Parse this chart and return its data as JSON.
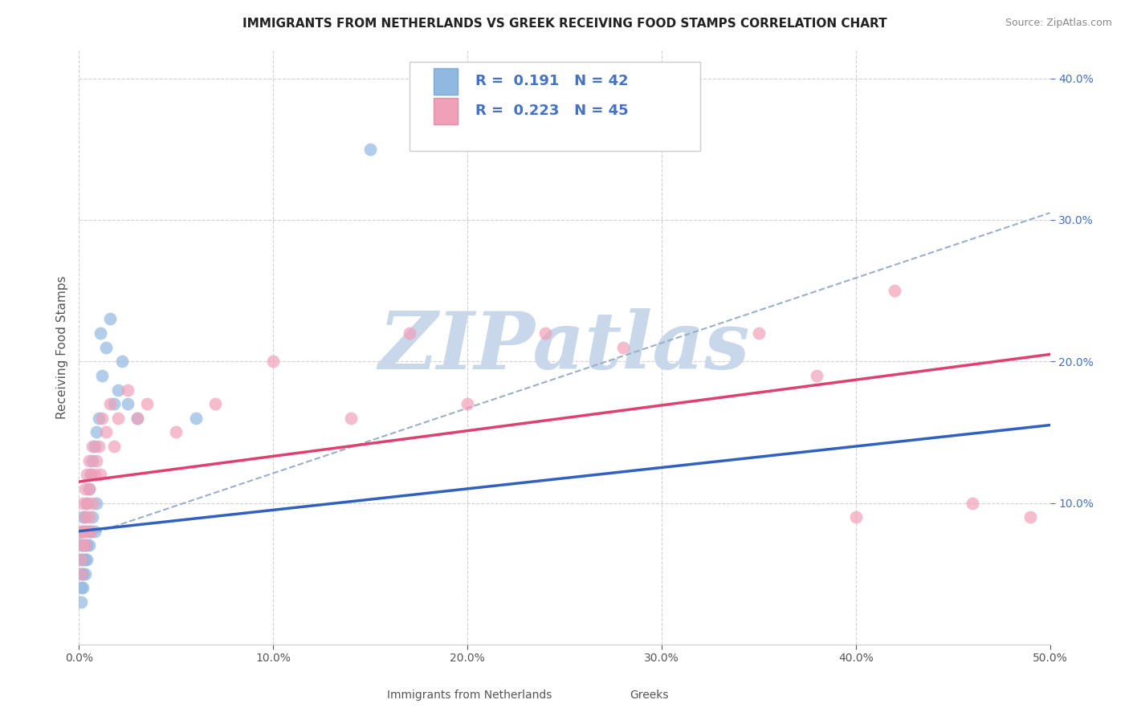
{
  "title": "IMMIGRANTS FROM NETHERLANDS VS GREEK RECEIVING FOOD STAMPS CORRELATION CHART",
  "source": "Source: ZipAtlas.com",
  "ylabel": "Receiving Food Stamps",
  "xlim": [
    0.0,
    0.5
  ],
  "ylim": [
    0.0,
    0.42
  ],
  "xticks": [
    0.0,
    0.1,
    0.2,
    0.3,
    0.4,
    0.5
  ],
  "yticks": [
    0.1,
    0.2,
    0.3,
    0.4
  ],
  "xtick_labels": [
    "0.0%",
    "10.0%",
    "20.0%",
    "30.0%",
    "40.0%",
    "50.0%"
  ],
  "ytick_labels_right": [
    "10.0%",
    "20.0%",
    "30.0%",
    "40.0%"
  ],
  "netherlands_color": "#90b8e0",
  "greek_color": "#f0a0b8",
  "netherlands_line_color": "#3060c0",
  "greek_line_color": "#e04070",
  "trend_dashed_color": "#9ab0c8",
  "watermark": "ZIPatlas",
  "watermark_color": "#c8d8ea",
  "legend_R_netherlands": "0.191",
  "legend_N_netherlands": "42",
  "legend_R_greek": "0.223",
  "legend_N_greek": "45",
  "nl_x": [
    0.001,
    0.001,
    0.001,
    0.001,
    0.001,
    0.002,
    0.002,
    0.002,
    0.002,
    0.002,
    0.002,
    0.003,
    0.003,
    0.003,
    0.003,
    0.003,
    0.004,
    0.004,
    0.004,
    0.005,
    0.005,
    0.005,
    0.006,
    0.006,
    0.007,
    0.007,
    0.008,
    0.008,
    0.009,
    0.009,
    0.01,
    0.011,
    0.012,
    0.014,
    0.016,
    0.018,
    0.02,
    0.022,
    0.025,
    0.03,
    0.06,
    0.15
  ],
  "nl_y": [
    0.03,
    0.04,
    0.05,
    0.06,
    0.07,
    0.04,
    0.05,
    0.06,
    0.07,
    0.08,
    0.09,
    0.05,
    0.06,
    0.07,
    0.08,
    0.09,
    0.06,
    0.07,
    0.1,
    0.07,
    0.08,
    0.11,
    0.08,
    0.12,
    0.09,
    0.13,
    0.08,
    0.14,
    0.1,
    0.15,
    0.16,
    0.22,
    0.19,
    0.21,
    0.23,
    0.17,
    0.18,
    0.2,
    0.17,
    0.16,
    0.16,
    0.35
  ],
  "gr_x": [
    0.001,
    0.001,
    0.001,
    0.002,
    0.002,
    0.002,
    0.003,
    0.003,
    0.003,
    0.004,
    0.004,
    0.004,
    0.005,
    0.005,
    0.005,
    0.006,
    0.006,
    0.007,
    0.007,
    0.008,
    0.009,
    0.01,
    0.011,
    0.012,
    0.014,
    0.016,
    0.018,
    0.02,
    0.025,
    0.03,
    0.035,
    0.05,
    0.07,
    0.1,
    0.14,
    0.17,
    0.2,
    0.24,
    0.28,
    0.35,
    0.38,
    0.4,
    0.42,
    0.46,
    0.49
  ],
  "gr_y": [
    0.05,
    0.06,
    0.08,
    0.07,
    0.08,
    0.1,
    0.07,
    0.09,
    0.11,
    0.08,
    0.1,
    0.12,
    0.09,
    0.11,
    0.13,
    0.08,
    0.12,
    0.1,
    0.14,
    0.12,
    0.13,
    0.14,
    0.12,
    0.16,
    0.15,
    0.17,
    0.14,
    0.16,
    0.18,
    0.16,
    0.17,
    0.15,
    0.17,
    0.2,
    0.16,
    0.22,
    0.17,
    0.22,
    0.21,
    0.22,
    0.19,
    0.09,
    0.25,
    0.1,
    0.09
  ],
  "nl_line_x0": 0.0,
  "nl_line_y0": 0.08,
  "nl_line_x1": 0.5,
  "nl_line_y1": 0.155,
  "gr_line_x0": 0.0,
  "gr_line_y0": 0.115,
  "gr_line_x1": 0.5,
  "gr_line_y1": 0.205,
  "dash_line_x0": 0.0,
  "dash_line_y0": 0.075,
  "dash_line_x1": 0.5,
  "dash_line_y1": 0.305,
  "title_fontsize": 11,
  "axis_label_fontsize": 11,
  "tick_fontsize": 10,
  "legend_fontsize": 13
}
